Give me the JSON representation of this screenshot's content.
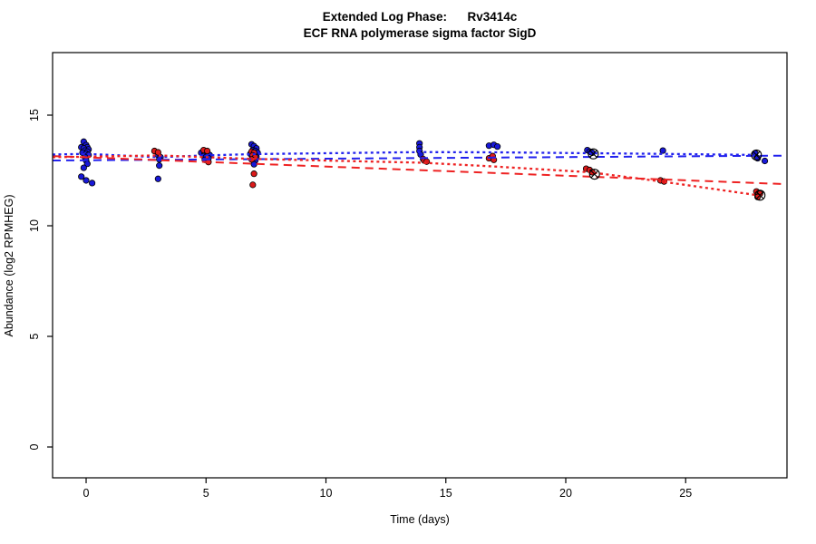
{
  "chart_data": {
    "type": "scatter",
    "title": "Extended Log Phase:      Rv3414c",
    "subtitle": "ECF RNA polymerase sigma factor SigD",
    "xlabel": "Time  (days)",
    "ylabel": "Abundance  (log2 RPMHEG)",
    "xlim": [
      -1.4,
      29.2
    ],
    "ylim": [
      -1.4,
      17.8
    ],
    "xticks": [
      0,
      5,
      10,
      15,
      20,
      25
    ],
    "yticks": [
      0,
      5,
      10,
      15
    ],
    "grid": false,
    "legend": "none",
    "colors": {
      "blue_points": "#1818d8",
      "red_points": "#dc1a1a",
      "blue_line": "#2222ee",
      "red_line": "#ee2222",
      "flag_marker": "#000000",
      "axis": "#000000"
    },
    "series": [
      {
        "name": "blue",
        "marker": "filled-circle",
        "color_key": "blue_points",
        "points": [
          [
            -0.1,
            13.8
          ],
          [
            0.0,
            13.65
          ],
          [
            -0.2,
            13.55
          ],
          [
            0.05,
            13.55
          ],
          [
            -0.1,
            13.5
          ],
          [
            0.1,
            13.45
          ],
          [
            -0.05,
            13.4
          ],
          [
            0.05,
            13.35
          ],
          [
            -0.15,
            13.3
          ],
          [
            0.0,
            13.25
          ],
          [
            0.1,
            13.2
          ],
          [
            -0.05,
            13.1
          ],
          [
            0.0,
            12.95
          ],
          [
            0.05,
            12.8
          ],
          [
            -0.1,
            12.62
          ],
          [
            -0.2,
            12.22
          ],
          [
            0.0,
            12.05
          ],
          [
            0.25,
            11.93
          ],
          [
            3.0,
            13.2
          ],
          [
            3.1,
            13.1
          ],
          [
            3.05,
            13.0
          ],
          [
            3.05,
            12.72
          ],
          [
            3.0,
            12.12
          ],
          [
            4.8,
            13.3
          ],
          [
            4.95,
            13.28
          ],
          [
            5.05,
            13.25
          ],
          [
            5.15,
            13.2
          ],
          [
            4.9,
            13.15
          ],
          [
            5.0,
            13.1
          ],
          [
            5.1,
            13.05
          ],
          [
            4.95,
            12.98
          ],
          [
            6.9,
            13.68
          ],
          [
            7.0,
            13.6
          ],
          [
            7.1,
            13.5
          ],
          [
            6.95,
            13.42
          ],
          [
            7.05,
            13.38
          ],
          [
            7.15,
            13.3
          ],
          [
            6.85,
            13.25
          ],
          [
            7.0,
            13.2
          ],
          [
            7.1,
            13.12
          ],
          [
            6.95,
            13.05
          ],
          [
            7.05,
            12.95
          ],
          [
            7.0,
            12.78
          ],
          [
            13.9,
            13.72
          ],
          [
            13.9,
            13.55
          ],
          [
            13.9,
            13.38
          ],
          [
            13.95,
            13.22
          ],
          [
            16.8,
            13.62
          ],
          [
            17.0,
            13.66
          ],
          [
            17.15,
            13.58
          ],
          [
            20.9,
            13.42
          ],
          [
            21.0,
            13.35
          ],
          [
            21.1,
            13.3
          ],
          [
            24.05,
            13.4
          ],
          [
            27.9,
            13.28
          ],
          [
            28.0,
            13.05
          ],
          [
            28.3,
            12.93
          ]
        ]
      },
      {
        "name": "red",
        "marker": "filled-circle",
        "color_key": "red_points",
        "points": [
          [
            2.85,
            13.38
          ],
          [
            3.0,
            13.32
          ],
          [
            4.9,
            13.42
          ],
          [
            5.05,
            13.38
          ],
          [
            5.1,
            12.88
          ],
          [
            6.9,
            13.35
          ],
          [
            7.0,
            13.3
          ],
          [
            6.95,
            13.18
          ],
          [
            7.05,
            13.1
          ],
          [
            6.9,
            13.0
          ],
          [
            7.0,
            12.35
          ],
          [
            6.95,
            11.85
          ],
          [
            14.05,
            13.02
          ],
          [
            14.1,
            12.95
          ],
          [
            14.2,
            12.9
          ],
          [
            16.8,
            13.05
          ],
          [
            16.95,
            13.15
          ],
          [
            17.0,
            12.98
          ],
          [
            20.85,
            12.58
          ],
          [
            21.0,
            12.52
          ],
          [
            21.1,
            12.42
          ],
          [
            23.95,
            12.05
          ],
          [
            24.1,
            12.0
          ],
          [
            27.95,
            11.55
          ],
          [
            28.1,
            11.45
          ],
          [
            28.0,
            11.3
          ]
        ]
      }
    ],
    "flagged_points": {
      "marker": "circle-x",
      "blue": [
        [
          21.15,
          13.25
        ],
        [
          27.95,
          13.2
        ]
      ],
      "red": [
        [
          21.2,
          12.33
        ],
        [
          28.1,
          11.38
        ]
      ]
    },
    "fit_lines": [
      {
        "name": "blue-linear-fit",
        "style": "dashed",
        "color_key": "blue_line",
        "points": [
          [
            -1.4,
            12.95
          ],
          [
            29.2,
            13.17
          ]
        ]
      },
      {
        "name": "red-linear-fit",
        "style": "dashed",
        "color_key": "red_line",
        "points": [
          [
            -1.4,
            13.15
          ],
          [
            29.2,
            11.88
          ]
        ]
      },
      {
        "name": "blue-smooth-fit",
        "style": "dotted",
        "color_key": "blue_line",
        "points": [
          [
            -1.4,
            13.22
          ],
          [
            0,
            13.25
          ],
          [
            3,
            13.1
          ],
          [
            5,
            13.18
          ],
          [
            7,
            13.24
          ],
          [
            14,
            13.33
          ],
          [
            17,
            13.32
          ],
          [
            21,
            13.28
          ],
          [
            24,
            13.25
          ],
          [
            28,
            13.2
          ]
        ]
      },
      {
        "name": "red-smooth-fit",
        "style": "dotted",
        "color_key": "red_line",
        "points": [
          [
            -1.4,
            13.1
          ],
          [
            0,
            13.12
          ],
          [
            3,
            13.18
          ],
          [
            5,
            13.1
          ],
          [
            7,
            13.02
          ],
          [
            14,
            12.85
          ],
          [
            17,
            12.68
          ],
          [
            21,
            12.42
          ],
          [
            24,
            12.0
          ],
          [
            28,
            11.38
          ]
        ]
      }
    ]
  }
}
